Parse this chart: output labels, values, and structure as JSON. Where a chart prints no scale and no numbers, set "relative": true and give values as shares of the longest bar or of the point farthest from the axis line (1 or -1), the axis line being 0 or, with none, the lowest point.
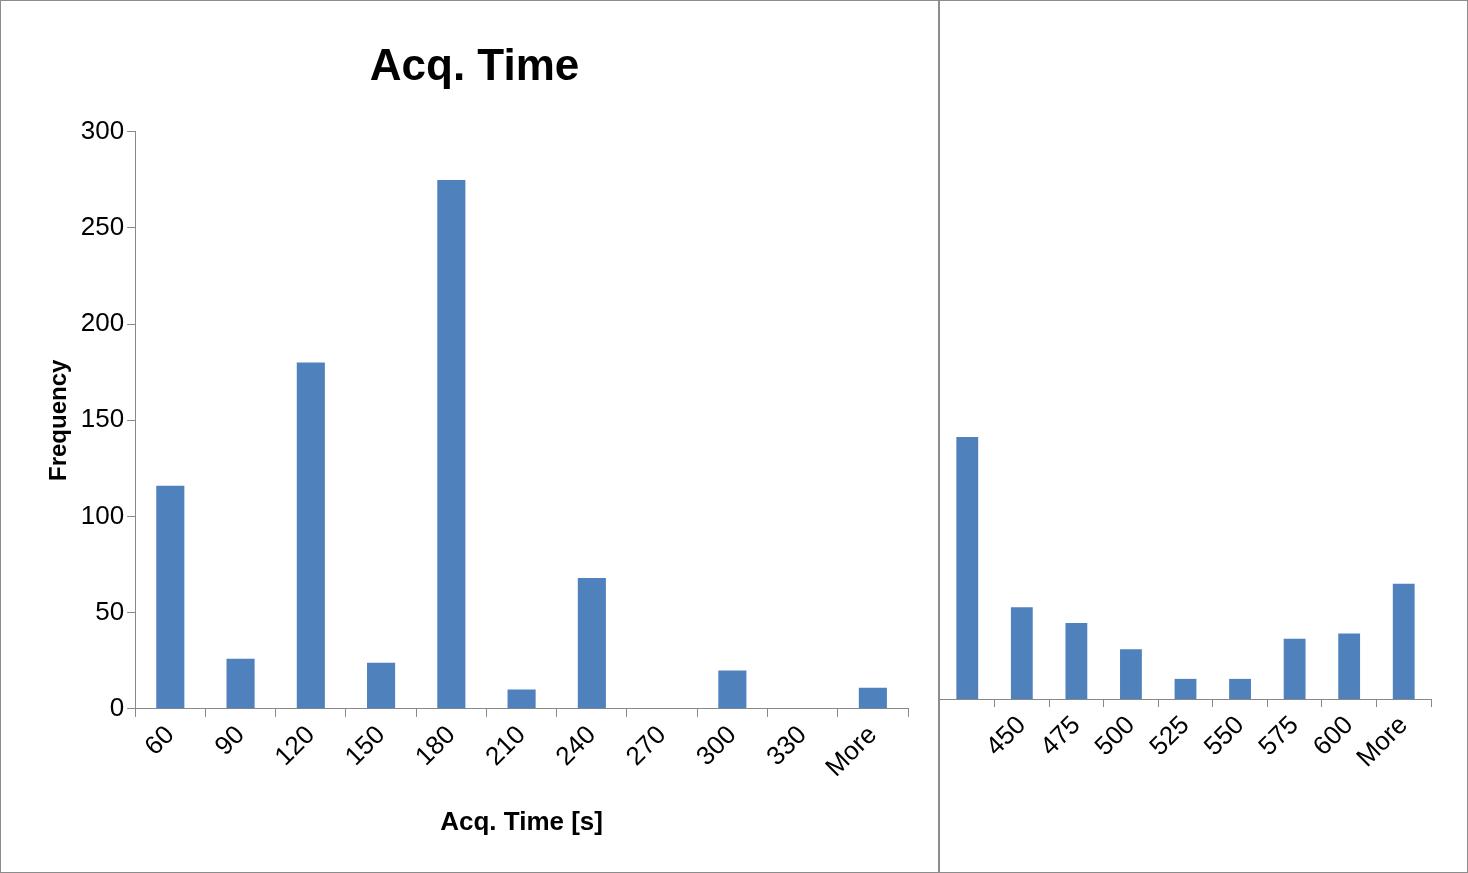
{
  "chart_data": [
    {
      "type": "bar",
      "title": "Acq. Time",
      "xlabel": "Acq. Time [s]",
      "ylabel": "Frequency",
      "categories": [
        "60",
        "90",
        "120",
        "150",
        "180",
        "210",
        "240",
        "270",
        "300",
        "330",
        "More"
      ],
      "values": [
        116,
        26,
        180,
        24,
        275,
        10,
        68,
        0,
        20,
        0,
        11
      ],
      "color": "#4f81bd",
      "ylim": [
        0,
        300
      ],
      "yticks": [
        0,
        50,
        100,
        150,
        200,
        250,
        300
      ]
    },
    {
      "type": "bar",
      "relative": true,
      "categories": [
        null,
        "450",
        "475",
        "500",
        "525",
        "550",
        "575",
        "600",
        "More"
      ],
      "values": [
        1,
        0.35,
        0.29,
        0.19,
        0.077,
        0.077,
        0.23,
        0.25,
        0.44
      ],
      "color": "#4f81bd"
    }
  ]
}
